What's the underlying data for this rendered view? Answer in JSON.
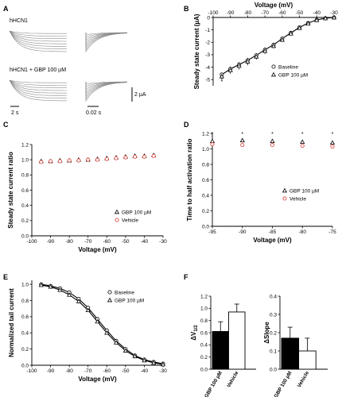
{
  "panels": {
    "A": {
      "letter": "A",
      "top_label": "hHCN1",
      "bottom_label": "hHCN1 + GBP 100 µM",
      "scale_current": "2 µA",
      "scale_time_left": "2 s",
      "scale_time_right": "0.02 s"
    },
    "B": {
      "letter": "B",
      "legend_baseline": "Baseline",
      "legend_gbp": "GBP 100 µM",
      "star": "*"
    },
    "C": {
      "letter": "C",
      "legend_gbp": "GBP 100 µM",
      "legend_vehicle": "Vehicle"
    },
    "D": {
      "letter": "D",
      "legend_gbp": "GBP 100 µM",
      "legend_vehicle": "Vehicle",
      "star": "*"
    },
    "E": {
      "letter": "E",
      "legend_baseline": "Baseline",
      "legend_gbp": "GBP 100 µM"
    },
    "F": {
      "letter": "F"
    }
  },
  "colors": {
    "vehicle": "#d9342b",
    "axis": "#000000",
    "trace": "#8a8a8a"
  },
  "chart_data": [
    {
      "id": "B",
      "type": "line",
      "xlabel": "Voltage (mV)",
      "ylabel": "Steady state current (µA)",
      "xticks": [
        -100,
        -90,
        -80,
        -70,
        -60,
        -50,
        -40,
        -30
      ],
      "yticks": [
        -5,
        -4,
        -3,
        -2,
        -1,
        0
      ],
      "xlim": [
        -100,
        -30
      ],
      "ylim": [
        -5.5,
        0
      ],
      "x": [
        -95,
        -90,
        -85,
        -80,
        -75,
        -70,
        -65,
        -60,
        -55,
        -50,
        -45,
        -40,
        -35,
        -30
      ],
      "series": [
        {
          "name": "Baseline",
          "marker": "circle",
          "values": [
            -4.6,
            -4.15,
            -3.8,
            -3.45,
            -3.05,
            -2.6,
            -2.2,
            -1.7,
            -1.25,
            -0.8,
            -0.45,
            -0.2,
            -0.06,
            0.0
          ]
        },
        {
          "name": "GBP 100 µM",
          "marker": "triangle",
          "values": [
            -4.75,
            -4.25,
            -3.9,
            -3.55,
            -3.15,
            -2.7,
            -2.3,
            -1.8,
            -1.3,
            -0.85,
            -0.5,
            -0.22,
            -0.07,
            0.0
          ]
        }
      ],
      "errors": [
        0.3,
        0.3,
        0.3,
        0.3,
        0.25,
        0.25,
        0.2,
        0.15,
        0.12,
        0.1,
        0.08,
        0.05,
        0.04,
        0.02
      ],
      "annotation_x": -95
    },
    {
      "id": "C",
      "type": "scatter",
      "xlabel": "Voltage (mV)",
      "ylabel": "Steady state current ratio",
      "xticks": [
        -100,
        -90,
        -80,
        -70,
        -60,
        -50,
        -40,
        -30
      ],
      "yticks": [
        0.0,
        0.2,
        0.4,
        0.6,
        0.8,
        1.0,
        1.2
      ],
      "xlim": [
        -100,
        -30
      ],
      "ylim": [
        0,
        1.2
      ],
      "x": [
        -95,
        -90,
        -85,
        -80,
        -75,
        -70,
        -65,
        -60,
        -55,
        -50,
        -45,
        -40,
        -35
      ],
      "series": [
        {
          "name": "GBP 100 µM",
          "marker": "triangle",
          "values": [
            0.98,
            0.98,
            0.99,
            0.99,
            1.0,
            1.0,
            1.01,
            1.02,
            1.03,
            1.04,
            1.05,
            1.05,
            1.06
          ]
        },
        {
          "name": "Vehicle",
          "marker": "circle",
          "color": "#d9342b",
          "values": [
            0.97,
            0.98,
            0.98,
            0.99,
            0.99,
            1.0,
            1.0,
            1.01,
            1.02,
            1.03,
            1.04,
            1.04,
            1.05
          ]
        }
      ]
    },
    {
      "id": "D",
      "type": "scatter",
      "xlabel": "Voltage (mV)",
      "ylabel": "Time to half activation ratio",
      "xticks": [
        -95,
        -90,
        -85,
        -80,
        -75
      ],
      "yticks": [
        0.0,
        0.2,
        0.4,
        0.6,
        0.8,
        1.0,
        1.2
      ],
      "xlim": [
        -95,
        -75
      ],
      "ylim": [
        0,
        1.2
      ],
      "x": [
        -95,
        -90,
        -85,
        -80,
        -75
      ],
      "series": [
        {
          "name": "GBP 100 µM",
          "marker": "triangle",
          "values": [
            1.1,
            1.11,
            1.1,
            1.09,
            1.08
          ]
        },
        {
          "name": "Vehicle",
          "marker": "circle",
          "color": "#d9342b",
          "values": [
            1.06,
            1.05,
            1.05,
            1.04,
            1.03
          ]
        }
      ],
      "annotation_x": [
        -95,
        -90,
        -85,
        -80,
        -75
      ]
    },
    {
      "id": "E",
      "type": "line",
      "xlabel": "Voltage (mV)",
      "ylabel": "Normalized tail current",
      "xticks": [
        -100,
        -90,
        -80,
        -70,
        -60,
        -50,
        -40,
        -30
      ],
      "yticks": [
        0.0,
        0.2,
        0.4,
        0.6,
        0.8,
        1.0
      ],
      "xlim": [
        -100,
        -30
      ],
      "ylim": [
        0,
        1.05
      ],
      "x": [
        -95,
        -90,
        -85,
        -80,
        -75,
        -70,
        -65,
        -60,
        -55,
        -50,
        -45,
        -40,
        -35,
        -30
      ],
      "series": [
        {
          "name": "Baseline",
          "marker": "circle",
          "values": [
            1.0,
            0.98,
            0.95,
            0.9,
            0.82,
            0.71,
            0.57,
            0.43,
            0.3,
            0.2,
            0.12,
            0.07,
            0.04,
            0.02
          ]
        },
        {
          "name": "GBP 100 µM",
          "marker": "triangle",
          "values": [
            0.99,
            0.97,
            0.93,
            0.87,
            0.79,
            0.68,
            0.54,
            0.4,
            0.28,
            0.18,
            0.11,
            0.06,
            0.03,
            0.01
          ]
        }
      ]
    },
    {
      "id": "F-left",
      "type": "bar",
      "ylabel": "ΔV",
      "ylabel_sub": "1/2",
      "categories": [
        "GBP 100 µM",
        "Vehicle"
      ],
      "values": [
        0.62,
        0.94
      ],
      "errors": [
        0.16,
        0.13
      ],
      "fills": [
        "#000000",
        "#ffffff"
      ],
      "yticks": [
        0.0,
        0.2,
        0.4,
        0.6,
        0.8,
        1.0,
        1.2
      ],
      "ylim": [
        0,
        1.2
      ]
    },
    {
      "id": "F-right",
      "type": "bar",
      "ylabel": "ΔSlope",
      "categories": [
        "GBP 100 µM",
        "Vehicle"
      ],
      "values": [
        0.17,
        0.1
      ],
      "errors": [
        0.06,
        0.07
      ],
      "fills": [
        "#000000",
        "#ffffff"
      ],
      "yticks": [
        0.0,
        0.1,
        0.2,
        0.3,
        0.4
      ],
      "ylim": [
        0,
        0.4
      ]
    }
  ]
}
